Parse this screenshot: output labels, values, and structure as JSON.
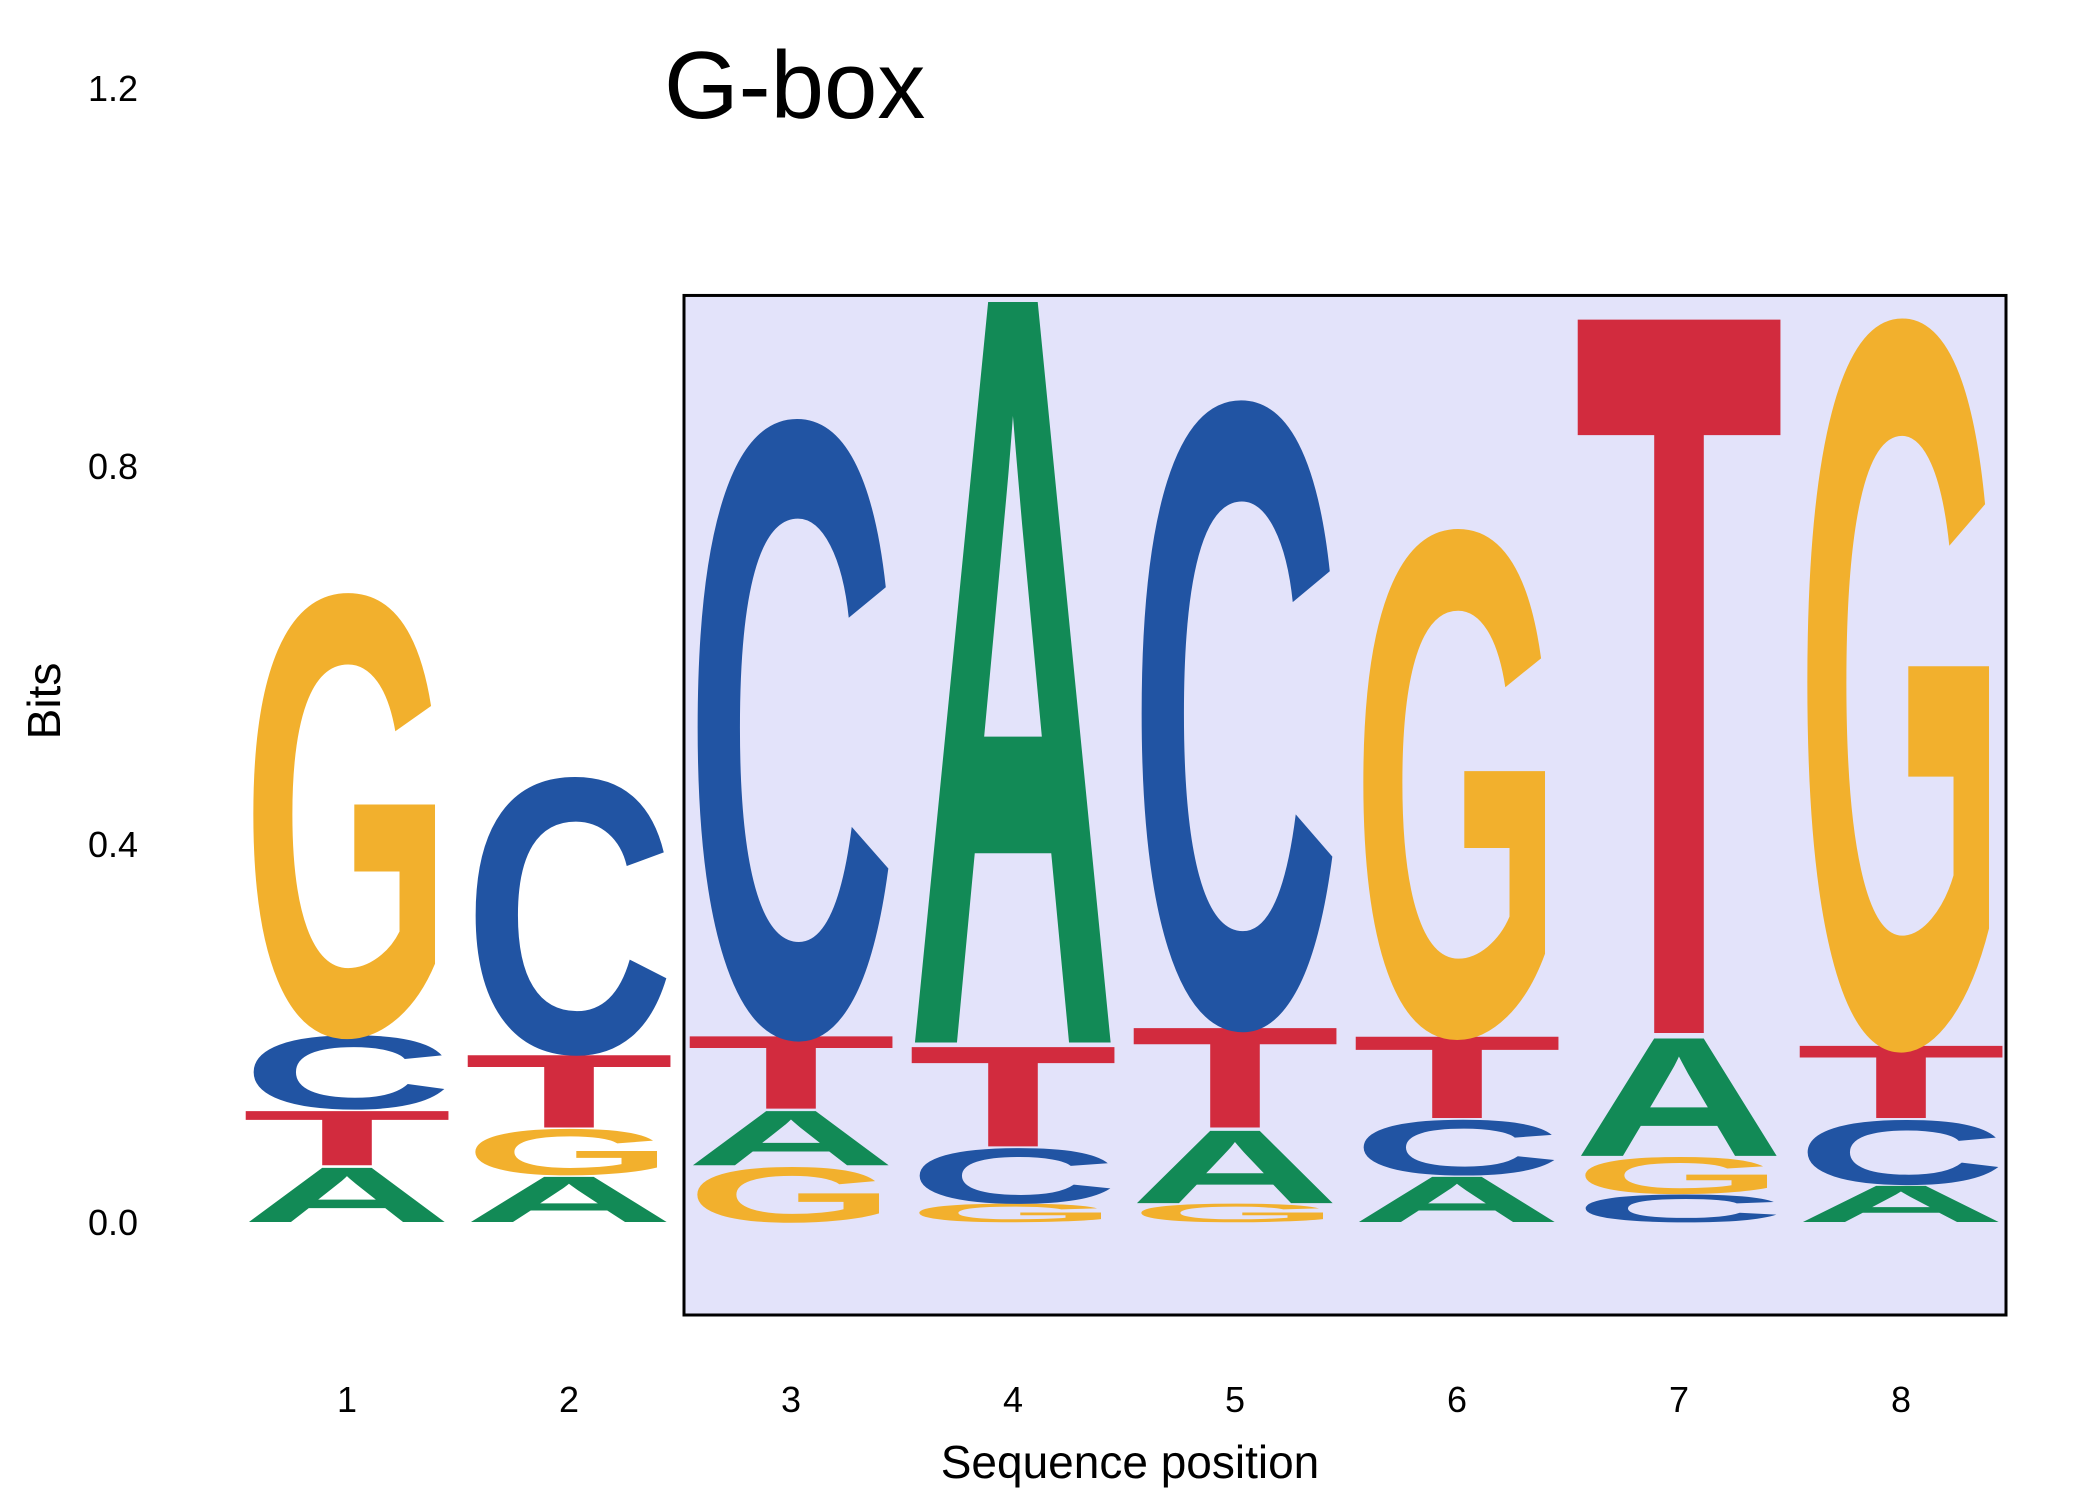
{
  "chart_data": {
    "type": "sequence-logo",
    "title": "G-box",
    "xlabel": "Sequence position",
    "ylabel": "Bits",
    "ylim": [
      0,
      1.2
    ],
    "y_ticks": [
      "0.0",
      "0.4",
      "0.8",
      "1.2"
    ],
    "x_ticks": [
      "1",
      "2",
      "3",
      "4",
      "5",
      "6",
      "7",
      "8"
    ],
    "highlight_positions": [
      3,
      8
    ],
    "highlight_color": "#e3e3fa",
    "colors": {
      "A": "#128a56",
      "C": "#2154a3",
      "G": "#f2b02d",
      "T": "#d22b3e"
    },
    "positions": [
      {
        "position": 1,
        "stack": [
          {
            "base": "A",
            "height": 0.06
          },
          {
            "base": "T",
            "height": 0.06
          },
          {
            "base": "C",
            "height": 0.08
          },
          {
            "base": "G",
            "height": 0.48
          }
        ]
      },
      {
        "position": 2,
        "stack": [
          {
            "base": "A",
            "height": 0.05
          },
          {
            "base": "G",
            "height": 0.05
          },
          {
            "base": "T",
            "height": 0.08
          },
          {
            "base": "C",
            "height": 0.3
          }
        ]
      },
      {
        "position": 3,
        "stack": [
          {
            "base": "G",
            "height": 0.06
          },
          {
            "base": "A",
            "height": 0.06
          },
          {
            "base": "T",
            "height": 0.08
          },
          {
            "base": "C",
            "height": 0.67
          }
        ]
      },
      {
        "position": 4,
        "stack": [
          {
            "base": "G",
            "height": 0.02
          },
          {
            "base": "C",
            "height": 0.06
          },
          {
            "base": "T",
            "height": 0.11
          },
          {
            "base": "A",
            "height": 0.82
          }
        ]
      },
      {
        "position": 5,
        "stack": [
          {
            "base": "G",
            "height": 0.02
          },
          {
            "base": "A",
            "height": 0.08
          },
          {
            "base": "T",
            "height": 0.11
          },
          {
            "base": "C",
            "height": 0.68
          }
        ]
      },
      {
        "position": 6,
        "stack": [
          {
            "base": "A",
            "height": 0.05
          },
          {
            "base": "C",
            "height": 0.06
          },
          {
            "base": "T",
            "height": 0.09
          },
          {
            "base": "G",
            "height": 0.55
          }
        ]
      },
      {
        "position": 7,
        "stack": [
          {
            "base": "C",
            "height": 0.03
          },
          {
            "base": "G",
            "height": 0.04
          },
          {
            "base": "A",
            "height": 0.13
          },
          {
            "base": "T",
            "height": 0.79
          }
        ]
      },
      {
        "position": 8,
        "stack": [
          {
            "base": "A",
            "height": 0.04
          },
          {
            "base": "C",
            "height": 0.07
          },
          {
            "base": "T",
            "height": 0.08
          },
          {
            "base": "G",
            "height": 0.79
          }
        ]
      }
    ]
  }
}
